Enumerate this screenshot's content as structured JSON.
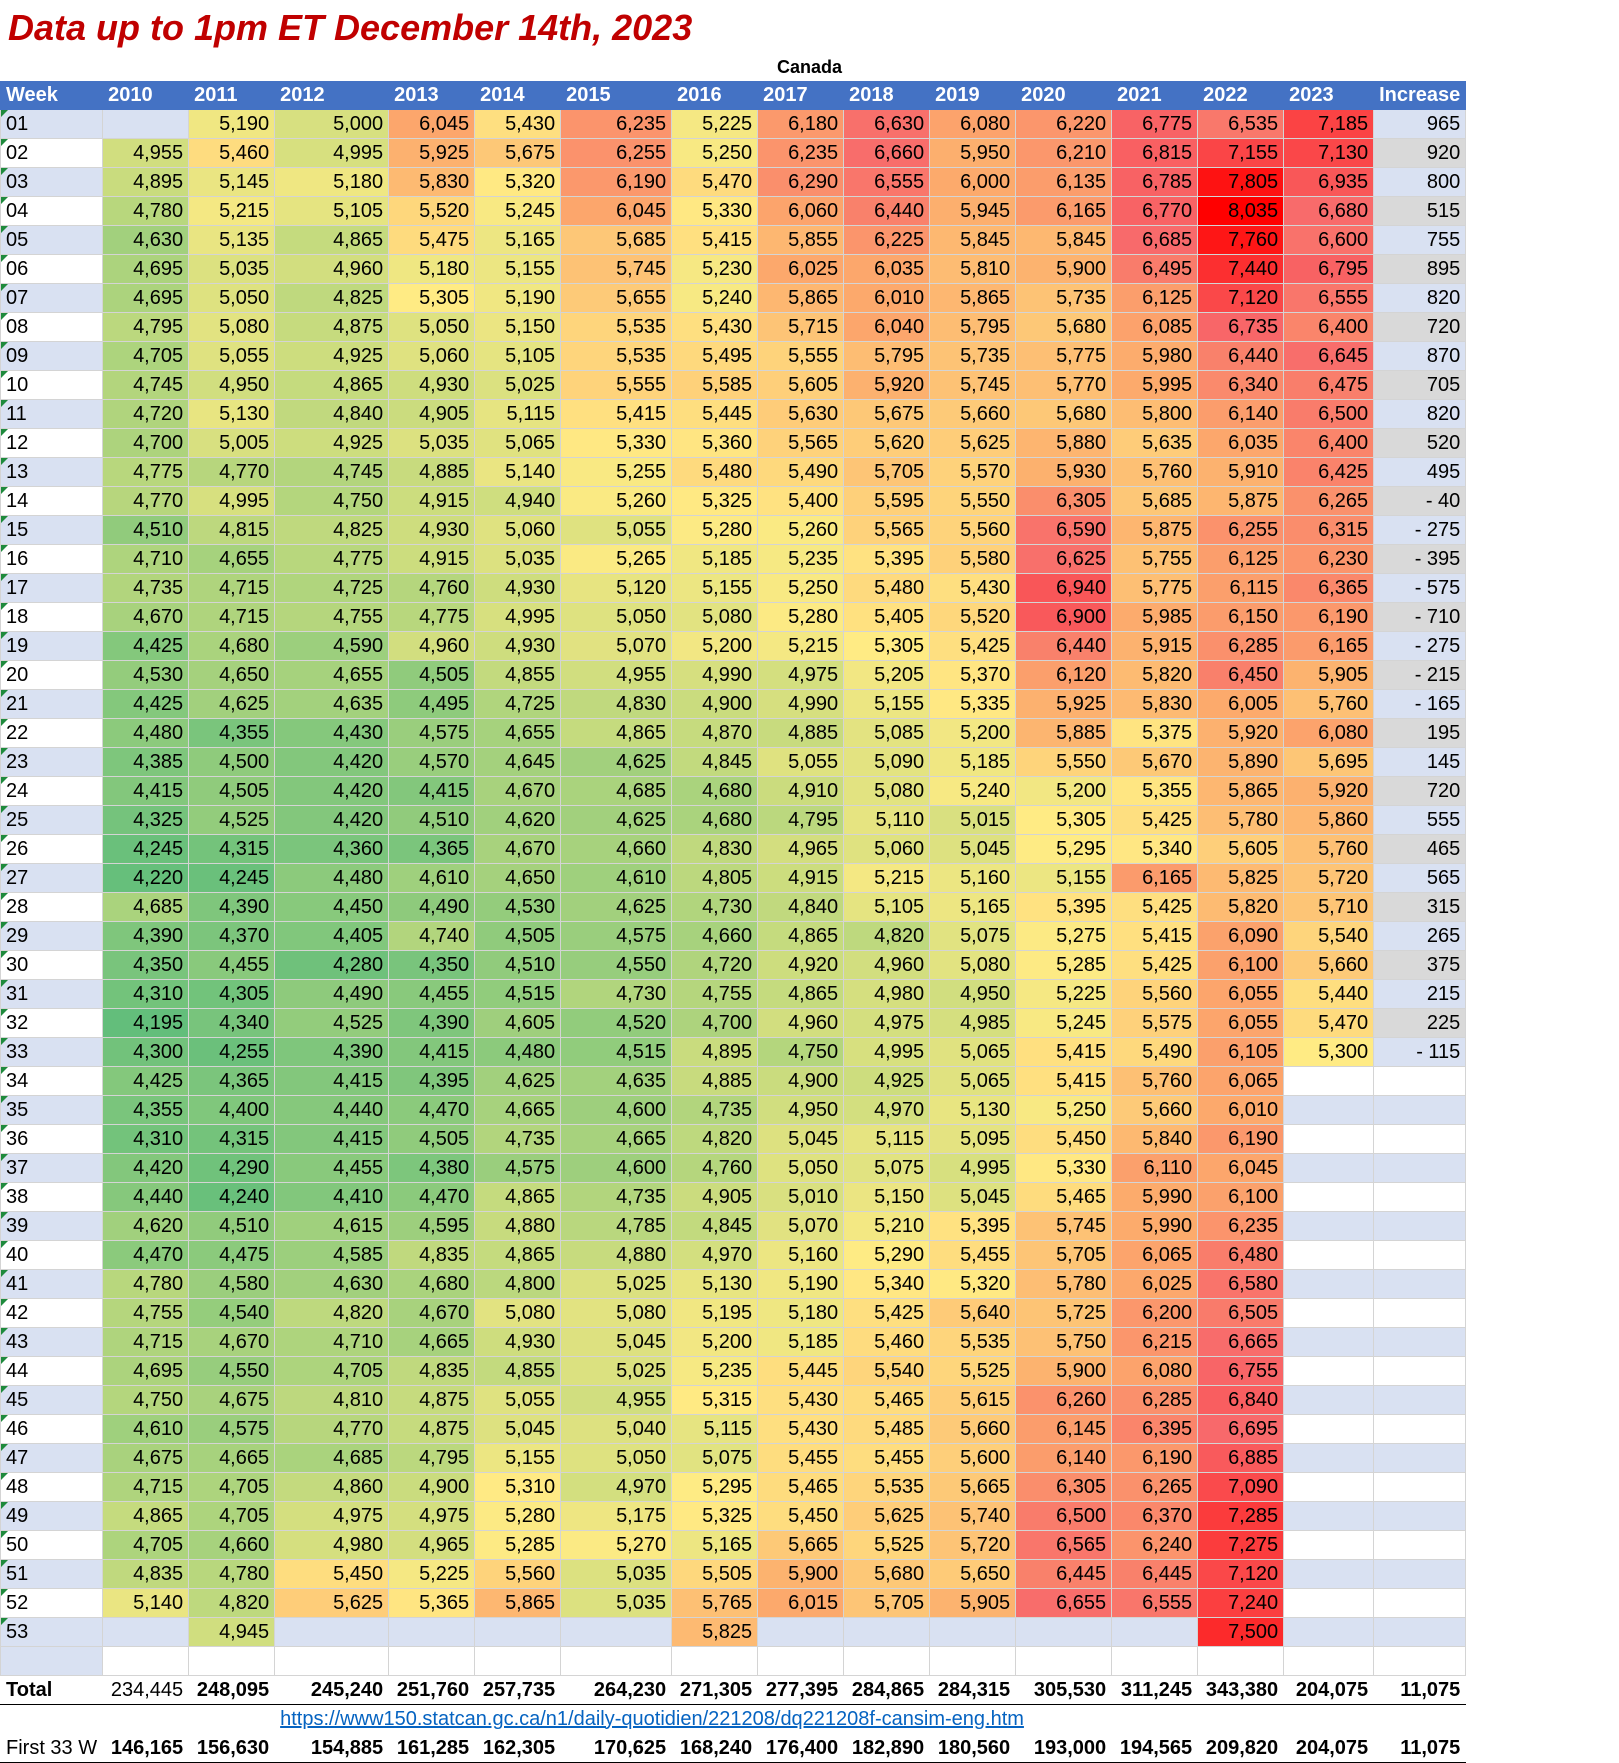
{
  "title": "Data up to 1pm ET December 14th, 2023",
  "region": "Canada",
  "columns": [
    "Week",
    "2010",
    "2011",
    "2012",
    "2013",
    "2014",
    "2015",
    "2016",
    "2017",
    "2018",
    "2019",
    "2020",
    "2021",
    "2022",
    "2023",
    "Increase"
  ],
  "rows": [
    [
      "01",
      "",
      "5,190",
      "5,000",
      "6,045",
      "5,430",
      "6,235",
      "5,225",
      "6,180",
      "6,630",
      "6,080",
      "6,220",
      "6,775",
      "6,535",
      "7,185",
      "965"
    ],
    [
      "02",
      "4,955",
      "5,460",
      "4,995",
      "5,925",
      "5,675",
      "6,255",
      "5,250",
      "6,235",
      "6,660",
      "5,950",
      "6,210",
      "6,815",
      "7,155",
      "7,130",
      "920"
    ],
    [
      "03",
      "4,895",
      "5,145",
      "5,180",
      "5,830",
      "5,320",
      "6,190",
      "5,470",
      "6,290",
      "6,555",
      "6,000",
      "6,135",
      "6,785",
      "7,805",
      "6,935",
      "800"
    ],
    [
      "04",
      "4,780",
      "5,215",
      "5,105",
      "5,520",
      "5,245",
      "6,045",
      "5,330",
      "6,060",
      "6,440",
      "5,945",
      "6,165",
      "6,770",
      "8,035",
      "6,680",
      "515"
    ],
    [
      "05",
      "4,630",
      "5,135",
      "4,865",
      "5,475",
      "5,165",
      "5,685",
      "5,415",
      "5,855",
      "6,225",
      "5,845",
      "5,845",
      "6,685",
      "7,760",
      "6,600",
      "755"
    ],
    [
      "06",
      "4,695",
      "5,035",
      "4,960",
      "5,180",
      "5,155",
      "5,745",
      "5,230",
      "6,025",
      "6,035",
      "5,810",
      "5,900",
      "6,495",
      "7,440",
      "6,795",
      "895"
    ],
    [
      "07",
      "4,695",
      "5,050",
      "4,825",
      "5,305",
      "5,190",
      "5,655",
      "5,240",
      "5,865",
      "6,010",
      "5,865",
      "5,735",
      "6,125",
      "7,120",
      "6,555",
      "820"
    ],
    [
      "08",
      "4,795",
      "5,080",
      "4,875",
      "5,050",
      "5,150",
      "5,535",
      "5,430",
      "5,715",
      "6,040",
      "5,795",
      "5,680",
      "6,085",
      "6,735",
      "6,400",
      "720"
    ],
    [
      "09",
      "4,705",
      "5,055",
      "4,925",
      "5,060",
      "5,105",
      "5,535",
      "5,495",
      "5,555",
      "5,795",
      "5,735",
      "5,775",
      "5,980",
      "6,440",
      "6,645",
      "870"
    ],
    [
      "10",
      "4,745",
      "4,950",
      "4,865",
      "4,930",
      "5,025",
      "5,555",
      "5,585",
      "5,605",
      "5,920",
      "5,745",
      "5,770",
      "5,995",
      "6,340",
      "6,475",
      "705"
    ],
    [
      "11",
      "4,720",
      "5,130",
      "4,840",
      "4,905",
      "5,115",
      "5,415",
      "5,445",
      "5,630",
      "5,675",
      "5,660",
      "5,680",
      "5,800",
      "6,140",
      "6,500",
      "820"
    ],
    [
      "12",
      "4,700",
      "5,005",
      "4,925",
      "5,035",
      "5,065",
      "5,330",
      "5,360",
      "5,565",
      "5,620",
      "5,625",
      "5,880",
      "5,635",
      "6,035",
      "6,400",
      "520"
    ],
    [
      "13",
      "4,775",
      "4,770",
      "4,745",
      "4,885",
      "5,140",
      "5,255",
      "5,480",
      "5,490",
      "5,705",
      "5,570",
      "5,930",
      "5,760",
      "5,910",
      "6,425",
      "495"
    ],
    [
      "14",
      "4,770",
      "4,995",
      "4,750",
      "4,915",
      "4,940",
      "5,260",
      "5,325",
      "5,400",
      "5,595",
      "5,550",
      "6,305",
      "5,685",
      "5,875",
      "6,265",
      "- 40"
    ],
    [
      "15",
      "4,510",
      "4,815",
      "4,825",
      "4,930",
      "5,060",
      "5,055",
      "5,280",
      "5,260",
      "5,565",
      "5,560",
      "6,590",
      "5,875",
      "6,255",
      "6,315",
      "- 275"
    ],
    [
      "16",
      "4,710",
      "4,655",
      "4,775",
      "4,915",
      "5,035",
      "5,265",
      "5,185",
      "5,235",
      "5,395",
      "5,580",
      "6,625",
      "5,755",
      "6,125",
      "6,230",
      "- 395"
    ],
    [
      "17",
      "4,735",
      "4,715",
      "4,725",
      "4,760",
      "4,930",
      "5,120",
      "5,155",
      "5,250",
      "5,480",
      "5,430",
      "6,940",
      "5,775",
      "6,115",
      "6,365",
      "- 575"
    ],
    [
      "18",
      "4,670",
      "4,715",
      "4,755",
      "4,775",
      "4,995",
      "5,050",
      "5,080",
      "5,280",
      "5,405",
      "5,520",
      "6,900",
      "5,985",
      "6,150",
      "6,190",
      "- 710"
    ],
    [
      "19",
      "4,425",
      "4,680",
      "4,590",
      "4,960",
      "4,930",
      "5,070",
      "5,200",
      "5,215",
      "5,305",
      "5,425",
      "6,440",
      "5,915",
      "6,285",
      "6,165",
      "- 275"
    ],
    [
      "20",
      "4,530",
      "4,650",
      "4,655",
      "4,505",
      "4,855",
      "4,955",
      "4,990",
      "4,975",
      "5,205",
      "5,370",
      "6,120",
      "5,820",
      "6,450",
      "5,905",
      "- 215"
    ],
    [
      "21",
      "4,425",
      "4,625",
      "4,635",
      "4,495",
      "4,725",
      "4,830",
      "4,900",
      "4,990",
      "5,155",
      "5,335",
      "5,925",
      "5,830",
      "6,005",
      "5,760",
      "- 165"
    ],
    [
      "22",
      "4,480",
      "4,355",
      "4,430",
      "4,575",
      "4,655",
      "4,865",
      "4,870",
      "4,885",
      "5,085",
      "5,200",
      "5,885",
      "5,375",
      "5,920",
      "6,080",
      "195"
    ],
    [
      "23",
      "4,385",
      "4,500",
      "4,420",
      "4,570",
      "4,645",
      "4,625",
      "4,845",
      "5,055",
      "5,090",
      "5,185",
      "5,550",
      "5,670",
      "5,890",
      "5,695",
      "145"
    ],
    [
      "24",
      "4,415",
      "4,505",
      "4,420",
      "4,415",
      "4,670",
      "4,685",
      "4,680",
      "4,910",
      "5,080",
      "5,240",
      "5,200",
      "5,355",
      "5,865",
      "5,920",
      "720"
    ],
    [
      "25",
      "4,325",
      "4,525",
      "4,420",
      "4,510",
      "4,620",
      "4,625",
      "4,680",
      "4,795",
      "5,110",
      "5,015",
      "5,305",
      "5,425",
      "5,780",
      "5,860",
      "555"
    ],
    [
      "26",
      "4,245",
      "4,315",
      "4,360",
      "4,365",
      "4,670",
      "4,660",
      "4,830",
      "4,965",
      "5,060",
      "5,045",
      "5,295",
      "5,340",
      "5,605",
      "5,760",
      "465"
    ],
    [
      "27",
      "4,220",
      "4,245",
      "4,480",
      "4,610",
      "4,650",
      "4,610",
      "4,805",
      "4,915",
      "5,215",
      "5,160",
      "5,155",
      "6,165",
      "5,825",
      "5,720",
      "565"
    ],
    [
      "28",
      "4,685",
      "4,390",
      "4,450",
      "4,490",
      "4,530",
      "4,625",
      "4,730",
      "4,840",
      "5,105",
      "5,165",
      "5,395",
      "5,425",
      "5,820",
      "5,710",
      "315"
    ],
    [
      "29",
      "4,390",
      "4,370",
      "4,405",
      "4,740",
      "4,505",
      "4,575",
      "4,660",
      "4,865",
      "4,820",
      "5,075",
      "5,275",
      "5,415",
      "6,090",
      "5,540",
      "265"
    ],
    [
      "30",
      "4,350",
      "4,455",
      "4,280",
      "4,350",
      "4,510",
      "4,550",
      "4,720",
      "4,920",
      "4,960",
      "5,080",
      "5,285",
      "5,425",
      "6,100",
      "5,660",
      "375"
    ],
    [
      "31",
      "4,310",
      "4,305",
      "4,490",
      "4,455",
      "4,515",
      "4,730",
      "4,755",
      "4,865",
      "4,980",
      "4,950",
      "5,225",
      "5,560",
      "6,055",
      "5,440",
      "215"
    ],
    [
      "32",
      "4,195",
      "4,340",
      "4,525",
      "4,390",
      "4,605",
      "4,520",
      "4,700",
      "4,960",
      "4,975",
      "4,985",
      "5,245",
      "5,575",
      "6,055",
      "5,470",
      "225"
    ],
    [
      "33",
      "4,300",
      "4,255",
      "4,390",
      "4,415",
      "4,480",
      "4,515",
      "4,895",
      "4,750",
      "4,995",
      "5,065",
      "5,415",
      "5,490",
      "6,105",
      "5,300",
      "- 115"
    ],
    [
      "34",
      "4,425",
      "4,365",
      "4,415",
      "4,395",
      "4,625",
      "4,635",
      "4,885",
      "4,900",
      "4,925",
      "5,065",
      "5,415",
      "5,760",
      "6,065",
      "",
      ""
    ],
    [
      "35",
      "4,355",
      "4,400",
      "4,440",
      "4,470",
      "4,665",
      "4,600",
      "4,735",
      "4,950",
      "4,970",
      "5,130",
      "5,250",
      "5,660",
      "6,010",
      "",
      ""
    ],
    [
      "36",
      "4,310",
      "4,315",
      "4,415",
      "4,505",
      "4,735",
      "4,665",
      "4,820",
      "5,045",
      "5,115",
      "5,095",
      "5,450",
      "5,840",
      "6,190",
      "",
      ""
    ],
    [
      "37",
      "4,420",
      "4,290",
      "4,455",
      "4,380",
      "4,575",
      "4,600",
      "4,760",
      "5,050",
      "5,075",
      "4,995",
      "5,330",
      "6,110",
      "6,045",
      "",
      ""
    ],
    [
      "38",
      "4,440",
      "4,240",
      "4,410",
      "4,470",
      "4,865",
      "4,735",
      "4,905",
      "5,010",
      "5,150",
      "5,045",
      "5,465",
      "5,990",
      "6,100",
      "",
      ""
    ],
    [
      "39",
      "4,620",
      "4,510",
      "4,615",
      "4,595",
      "4,880",
      "4,785",
      "4,845",
      "5,070",
      "5,210",
      "5,395",
      "5,745",
      "5,990",
      "6,235",
      "",
      ""
    ],
    [
      "40",
      "4,470",
      "4,475",
      "4,585",
      "4,835",
      "4,865",
      "4,880",
      "4,970",
      "5,160",
      "5,290",
      "5,455",
      "5,705",
      "6,065",
      "6,480",
      "",
      ""
    ],
    [
      "41",
      "4,780",
      "4,580",
      "4,630",
      "4,680",
      "4,800",
      "5,025",
      "5,130",
      "5,190",
      "5,340",
      "5,320",
      "5,780",
      "6,025",
      "6,580",
      "",
      ""
    ],
    [
      "42",
      "4,755",
      "4,540",
      "4,820",
      "4,670",
      "5,080",
      "5,080",
      "5,195",
      "5,180",
      "5,425",
      "5,640",
      "5,725",
      "6,200",
      "6,505",
      "",
      ""
    ],
    [
      "43",
      "4,715",
      "4,670",
      "4,710",
      "4,665",
      "4,930",
      "5,045",
      "5,200",
      "5,185",
      "5,460",
      "5,535",
      "5,750",
      "6,215",
      "6,665",
      "",
      ""
    ],
    [
      "44",
      "4,695",
      "4,550",
      "4,705",
      "4,835",
      "4,855",
      "5,025",
      "5,235",
      "5,445",
      "5,540",
      "5,525",
      "5,900",
      "6,080",
      "6,755",
      "",
      ""
    ],
    [
      "45",
      "4,750",
      "4,675",
      "4,810",
      "4,875",
      "5,055",
      "4,955",
      "5,315",
      "5,430",
      "5,465",
      "5,615",
      "6,260",
      "6,285",
      "6,840",
      "",
      ""
    ],
    [
      "46",
      "4,610",
      "4,575",
      "4,770",
      "4,875",
      "5,045",
      "5,040",
      "5,115",
      "5,430",
      "5,485",
      "5,660",
      "6,145",
      "6,395",
      "6,695",
      "",
      ""
    ],
    [
      "47",
      "4,675",
      "4,665",
      "4,685",
      "4,795",
      "5,155",
      "5,050",
      "5,075",
      "5,455",
      "5,455",
      "5,600",
      "6,140",
      "6,190",
      "6,885",
      "",
      ""
    ],
    [
      "48",
      "4,715",
      "4,705",
      "4,860",
      "4,900",
      "5,310",
      "4,970",
      "5,295",
      "5,465",
      "5,535",
      "5,665",
      "6,305",
      "6,265",
      "7,090",
      "",
      ""
    ],
    [
      "49",
      "4,865",
      "4,705",
      "4,975",
      "4,975",
      "5,280",
      "5,175",
      "5,325",
      "5,450",
      "5,625",
      "5,740",
      "6,500",
      "6,370",
      "7,285",
      "",
      ""
    ],
    [
      "50",
      "4,705",
      "4,660",
      "4,980",
      "4,965",
      "5,285",
      "5,270",
      "5,165",
      "5,665",
      "5,525",
      "5,720",
      "6,565",
      "6,240",
      "7,275",
      "",
      ""
    ],
    [
      "51",
      "4,835",
      "4,780",
      "5,450",
      "5,225",
      "5,560",
      "5,035",
      "5,505",
      "5,900",
      "5,680",
      "5,650",
      "6,445",
      "6,445",
      "7,120",
      "",
      ""
    ],
    [
      "52",
      "5,140",
      "4,820",
      "5,625",
      "5,365",
      "5,865",
      "5,035",
      "5,765",
      "6,015",
      "5,705",
      "5,905",
      "6,655",
      "6,555",
      "7,240",
      "",
      ""
    ],
    [
      "53",
      "",
      "4,945",
      "",
      "",
      "",
      "",
      "5,825",
      "",
      "",
      "",
      "",
      "",
      "7,500",
      "",
      ""
    ]
  ],
  "total": {
    "label": "Total",
    "values": [
      "234,445",
      "248,095",
      "245,240",
      "251,760",
      "257,735",
      "264,230",
      "271,305",
      "277,395",
      "284,865",
      "284,315",
      "305,530",
      "311,245",
      "343,380",
      "204,075",
      "11,075"
    ]
  },
  "link": "https://www150.statcan.gc.ca/n1/daily-quotidien/221208/dq221208f-cansim-eng.htm",
  "first33": {
    "label": "First 33 W",
    "values": [
      "146,165",
      "156,630",
      "154,885",
      "161,285",
      "162,305",
      "170,625",
      "168,240",
      "176,400",
      "182,890",
      "180,560",
      "193,000",
      "194,565",
      "209,820",
      "204,075",
      "11,075"
    ]
  }
}
